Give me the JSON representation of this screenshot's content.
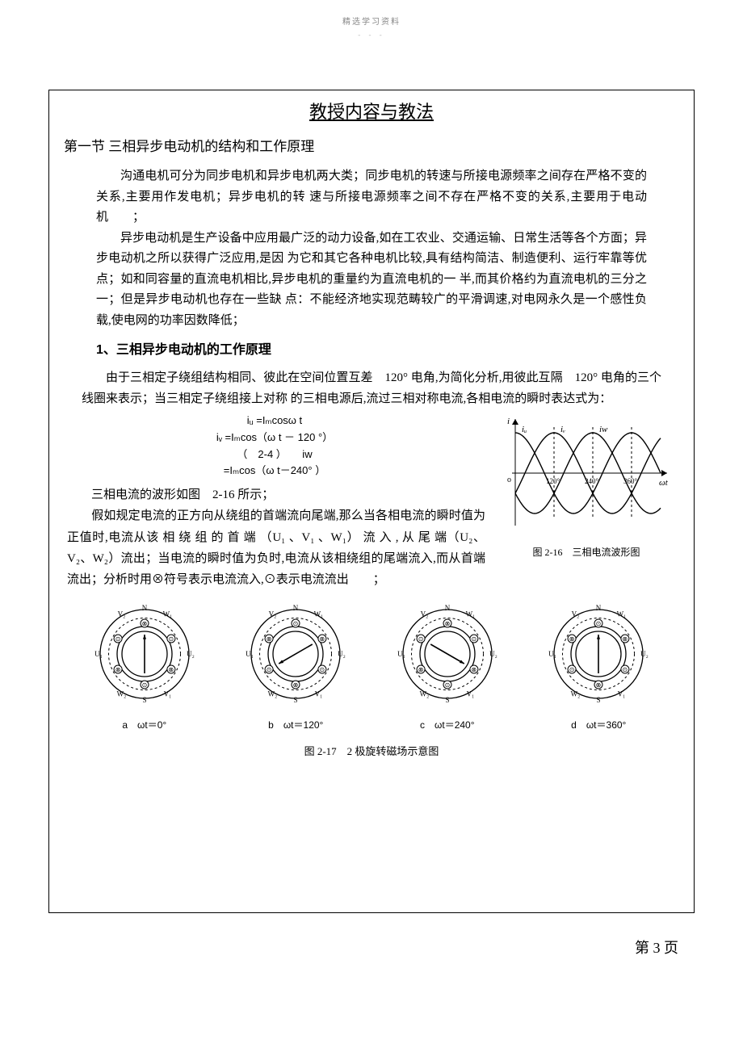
{
  "watermark": {
    "text": "精选学习资料",
    "dashes": "- - -"
  },
  "frame": {
    "title": "教授内容与教法",
    "section1_heading": "第一节 三相异步电动机的结构和工作原理",
    "para1": "沟通电机可分为同步电机和异步电机两大类；同步电机的转速与所接电源频率之间存在严格不变的关系,主要用作发电机；异步电机的转 速与所接电源频率之间不存在严格不变的关系,主要用于电动机　　；",
    "para2": "异步电动机是生产设备中应用最广泛的动力设备,如在工农业、交通运输、日常生活等各个方面；异步电动机之所以获得广泛应用,是因 为它和其它各种电机比较,具有结构简洁、制造便利、运行牢靠等优点；如和同容量的直流电机相比,异步电机的重量约为直流电机的一 半,而其价格约为直流电机的三分之一；但是异步电动机也存在一些缺 点：不能经济地实现范畴较广的平滑调速,对电网永久是一个感性负载,使电网的功率因数降低；",
    "sub_heading": "1、三相异步电动机的工作原理",
    "para3_part1": "由于三相定子绕组结构相同、彼此在空间位置互差　120° 电角,为简化分析,用彼此互隔　120° 电角的三个线圈来表示；当三相定子绕组接上对称 的三相电源后,流过三相对称电流,各相电流的瞬时表达式为：",
    "formula": {
      "line1": "iᵤ =Iₘcosω t",
      "line2": "iᵥ =Iₘcos（ω t － 120 °）",
      "line3": "（　2-4 ）　　iw",
      "line4": "=Iₘcos（ω t－240° ）"
    },
    "narrow_text": "三相电流的波形如图　2-16 所示；\n　　假如规定电流的正方向从绕组的首端流向尾端,那么当各相电流的瞬时值为正值时,电流从该 相 绕 组 的 首 端 （U₁ 、V₁ 、W₁） 流 入 , 从 尾 端（U₂、V₂、W₂）流出；当电流的瞬时值为负时,电流从该相绕组的尾端流入,而从首端流出；分析时用⊗符号表示电流流入,⊙表示电流流出　　；",
    "fig216_caption": "图 2-16　三相电流波形图",
    "diagrams": {
      "labels": [
        "a　ωt＝0°",
        "b　ωt＝120°",
        "c　ωt＝240°",
        "d　ωt＝360°"
      ],
      "caption": "图 2-17　2 极旋转磁场示意图"
    }
  },
  "waveform": {
    "axis_labels": {
      "y": "i",
      "x": "ωt"
    },
    "phase_labels": [
      "iᵤ",
      "iᵥ",
      "iw"
    ],
    "x_ticks": [
      "120°",
      "240°",
      "360°"
    ],
    "colors": {
      "stroke": "#000000",
      "bg": "#ffffff"
    },
    "amplitude": 1.0,
    "phases_deg": [
      0,
      120,
      240
    ]
  },
  "stator": {
    "outer_r": 55,
    "inner_r": 34,
    "gap_r": 28,
    "labels": [
      "V₂",
      "N",
      "W₁",
      "U₁",
      "U₂",
      "W₂",
      "S",
      "V₁"
    ],
    "field_angles_deg": [
      90,
      210,
      330,
      90
    ],
    "colors": {
      "stroke": "#000000",
      "fill": "#ffffff"
    }
  },
  "page_number": "第 3 页"
}
